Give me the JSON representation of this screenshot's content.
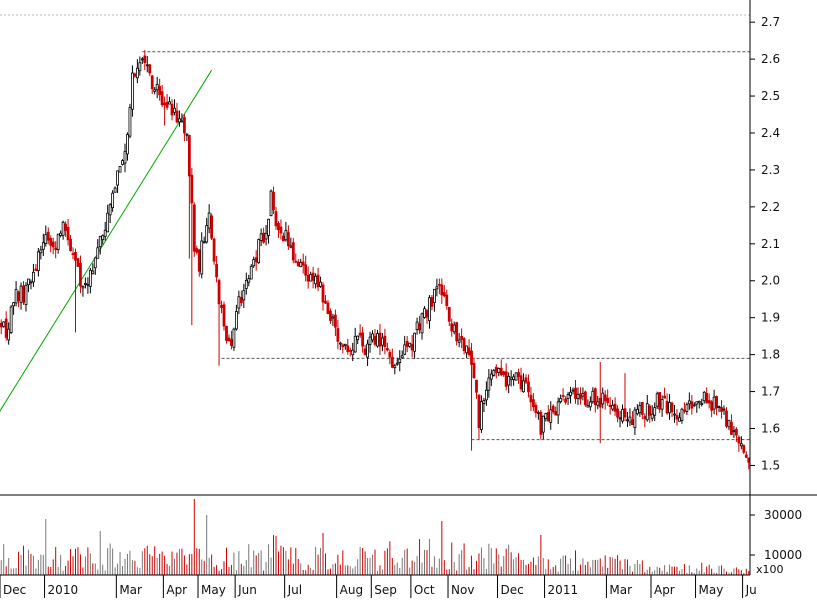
{
  "chart_data": {
    "type": "candlestick",
    "title": "",
    "xlabel": "",
    "ylabel": "",
    "price_axis": {
      "ylim": [
        1.42,
        2.76
      ],
      "ticks": [
        "1.5",
        "1.6",
        "1.7",
        "1.8",
        "1.9",
        "2.0",
        "2.1",
        "2.2",
        "2.3",
        "2.4",
        "2.5",
        "2.6",
        "2.7"
      ]
    },
    "volume_axis": {
      "ylim": [
        0,
        40000
      ],
      "ticks": [
        "10000",
        "30000"
      ],
      "multiplier_label": "x100"
    },
    "x_labels": [
      "Dec",
      "2010",
      "Mar",
      "Apr",
      "May",
      "Jun",
      "Jul",
      "Aug",
      "Sep",
      "Oct",
      "Nov",
      "Dec",
      "2011",
      "Mar",
      "Apr",
      "May",
      "Ju"
    ],
    "month_boundary_index": [
      0,
      18,
      47,
      66,
      80,
      95,
      115,
      136,
      150,
      166,
      181,
      201,
      220,
      245,
      263,
      281,
      300
    ],
    "colors": {
      "up": "#000000",
      "down": "#cc0000",
      "trend": "#00aa00",
      "reference": "#555555"
    },
    "reference_levels": [
      {
        "price": 2.62,
        "from_index": 57
      },
      {
        "price": 1.79,
        "from_index": 89
      },
      {
        "price": 1.57,
        "from_index": 190
      }
    ],
    "trendline": {
      "start": {
        "index": -4,
        "price": 1.61
      },
      "end": {
        "index": 85,
        "price": 2.57
      }
    },
    "anchors": [
      [
        0,
        1.9
      ],
      [
        2,
        1.85
      ],
      [
        5,
        1.95
      ],
      [
        10,
        1.97
      ],
      [
        14,
        2.05
      ],
      [
        18,
        2.12
      ],
      [
        22,
        2.1
      ],
      [
        26,
        2.15
      ],
      [
        30,
        2.05
      ],
      [
        34,
        1.97
      ],
      [
        37,
        2.05
      ],
      [
        42,
        2.15
      ],
      [
        46,
        2.25
      ],
      [
        50,
        2.35
      ],
      [
        53,
        2.55
      ],
      [
        56,
        2.6
      ],
      [
        58,
        2.58
      ],
      [
        63,
        2.52
      ],
      [
        68,
        2.47
      ],
      [
        72,
        2.42
      ],
      [
        75,
        2.4
      ],
      [
        76,
        2.28
      ],
      [
        78,
        2.1
      ],
      [
        80,
        2.05
      ],
      [
        84,
        2.2
      ],
      [
        87,
        2.0
      ],
      [
        90,
        1.88
      ],
      [
        93,
        1.82
      ],
      [
        96,
        1.95
      ],
      [
        100,
        2.0
      ],
      [
        104,
        2.1
      ],
      [
        107,
        2.12
      ],
      [
        109,
        2.22
      ],
      [
        112,
        2.15
      ],
      [
        116,
        2.1
      ],
      [
        119,
        2.05
      ],
      [
        123,
        2.02
      ],
      [
        127,
        2.0
      ],
      [
        131,
        1.95
      ],
      [
        136,
        1.85
      ],
      [
        140,
        1.8
      ],
      [
        145,
        1.85
      ],
      [
        148,
        1.81
      ],
      [
        152,
        1.86
      ],
      [
        156,
        1.8
      ],
      [
        160,
        1.78
      ],
      [
        165,
        1.82
      ],
      [
        169,
        1.88
      ],
      [
        173,
        1.93
      ],
      [
        177,
        1.99
      ],
      [
        181,
        1.9
      ],
      [
        184,
        1.85
      ],
      [
        188,
        1.8
      ],
      [
        191,
        1.75
      ],
      [
        193,
        1.6
      ],
      [
        195,
        1.7
      ],
      [
        198,
        1.77
      ],
      [
        203,
        1.74
      ],
      [
        208,
        1.73
      ],
      [
        213,
        1.71
      ],
      [
        216,
        1.66
      ],
      [
        218,
        1.6
      ],
      [
        222,
        1.64
      ],
      [
        226,
        1.66
      ],
      [
        230,
        1.7
      ],
      [
        236,
        1.67
      ],
      [
        241,
        1.68
      ],
      [
        246,
        1.66
      ],
      [
        251,
        1.65
      ],
      [
        255,
        1.62
      ],
      [
        260,
        1.65
      ],
      [
        265,
        1.67
      ],
      [
        270,
        1.65
      ],
      [
        275,
        1.63
      ],
      [
        280,
        1.67
      ],
      [
        284,
        1.68
      ],
      [
        288,
        1.66
      ],
      [
        292,
        1.64
      ],
      [
        295,
        1.6
      ],
      [
        298,
        1.56
      ],
      [
        300,
        1.53
      ]
    ],
    "spikes": [
      {
        "index": 30,
        "low": 1.86
      },
      {
        "index": 66,
        "low": 2.42
      },
      {
        "index": 76,
        "low": 2.06
      },
      {
        "index": 77,
        "low": 1.88
      },
      {
        "index": 88,
        "low": 1.77
      },
      {
        "index": 190,
        "low": 1.54
      },
      {
        "index": 193,
        "low": 1.57
      },
      {
        "index": 218,
        "low": 1.57
      },
      {
        "index": 242,
        "high": 1.78,
        "low": 1.56
      },
      {
        "index": 252,
        "high": 1.75
      }
    ],
    "volume_spikes": [
      {
        "index": 18,
        "value": 28000
      },
      {
        "index": 40,
        "value": 22000
      },
      {
        "index": 78,
        "value": 38000
      },
      {
        "index": 83,
        "value": 30000
      },
      {
        "index": 130,
        "value": 21000
      },
      {
        "index": 178,
        "value": 27000
      },
      {
        "index": 218,
        "value": 20000
      }
    ]
  }
}
